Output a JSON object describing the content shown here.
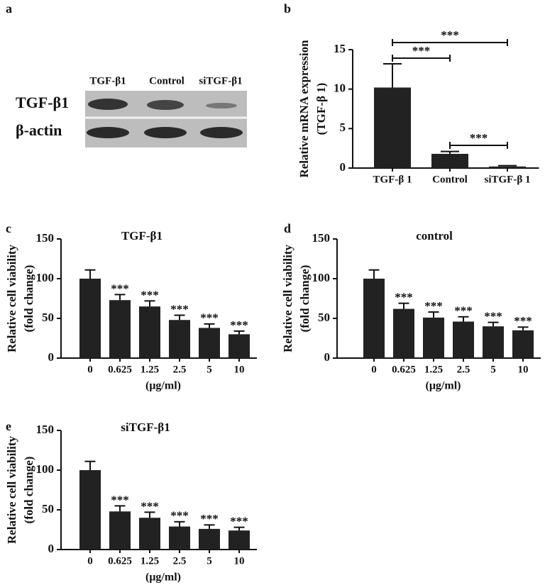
{
  "blot": {
    "panel": "a",
    "lanes": [
      "TGF-β1",
      "Control",
      "siTGF-β1"
    ],
    "rows": [
      "TGF-β1",
      "β-actin"
    ]
  },
  "chart_data": [
    {
      "type": "bar",
      "panel": "b",
      "ylabel": [
        "Relative mRNA expression",
        "(TGF-β 1)"
      ],
      "categories": [
        "TGF-β 1",
        "Control",
        "siTGF-β 1"
      ],
      "values": [
        10.2,
        1.8,
        0.2
      ],
      "errors": [
        3.0,
        0.3,
        0.1
      ],
      "ylim": [
        0,
        15
      ],
      "yticks": [
        0,
        5,
        10,
        15
      ],
      "color": "#222222",
      "brackets": [
        {
          "label": "***",
          "between": [
            0,
            2
          ]
        },
        {
          "label": "***",
          "between": [
            0,
            1
          ]
        },
        {
          "label": "***",
          "between": [
            1,
            2
          ]
        }
      ]
    },
    {
      "type": "bar",
      "panel": "c",
      "title": "TGF-β1",
      "ylabel": [
        "Relative cell viability",
        "(fold change)"
      ],
      "xlabel": "(μg/ml)",
      "categories": [
        "0",
        "0.625",
        "1.25",
        "2.5",
        "5",
        "10"
      ],
      "values": [
        100,
        73,
        65,
        48,
        38,
        30
      ],
      "errors": [
        11,
        7,
        7,
        6,
        5,
        4
      ],
      "significance": [
        null,
        "***",
        "***",
        "***",
        "***",
        "***"
      ],
      "ylim": [
        0,
        150
      ],
      "yticks": [
        0,
        50,
        100,
        150
      ],
      "color": "#222222"
    },
    {
      "type": "bar",
      "panel": "d",
      "title": "control",
      "ylabel": [
        "Relative cell viability",
        "(fold change)"
      ],
      "xlabel": "(μg/ml)",
      "categories": [
        "0",
        "0.625",
        "1.25",
        "2.5",
        "5",
        "10"
      ],
      "values": [
        100,
        62,
        51,
        46,
        40,
        35
      ],
      "errors": [
        11,
        7,
        7,
        6,
        5,
        4
      ],
      "significance": [
        null,
        "***",
        "***",
        "***",
        "***",
        "***"
      ],
      "ylim": [
        0,
        150
      ],
      "yticks": [
        0,
        50,
        100,
        150
      ],
      "color": "#222222"
    },
    {
      "type": "bar",
      "panel": "e",
      "title": "siTGF-β1",
      "ylabel": [
        "Relative cell viability",
        "(fold change)"
      ],
      "xlabel": "(μg/ml)",
      "categories": [
        "0",
        "0.625",
        "1.25",
        "2.5",
        "5",
        "10"
      ],
      "values": [
        100,
        48,
        40,
        29,
        26,
        24
      ],
      "errors": [
        11,
        7,
        7,
        6,
        5,
        4
      ],
      "significance": [
        null,
        "***",
        "***",
        "***",
        "***",
        "***"
      ],
      "ylim": [
        0,
        150
      ],
      "yticks": [
        0,
        50,
        100,
        150
      ],
      "color": "#222222"
    }
  ]
}
